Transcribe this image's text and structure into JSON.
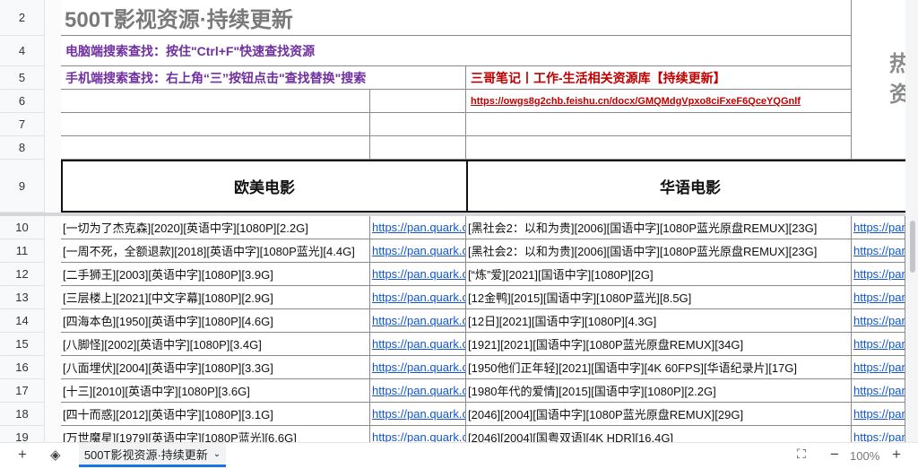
{
  "rows": {
    "header_numbers": [
      "2",
      "4",
      "5",
      "6",
      "7",
      "8",
      "9"
    ],
    "body_numbers": [
      "10",
      "11",
      "12",
      "13",
      "14",
      "15",
      "16",
      "17",
      "18",
      "19"
    ]
  },
  "top": {
    "title": "500T影视资源·持续更新",
    "pc_search": "电脑端搜索查找：按住\"Ctrl+F\"快速查找资源",
    "mobile_search": "手机端搜索查找：右上角“三”按钮点击\"查找替换\"搜索",
    "notes_title": "三哥笔记丨工作-生活相关资源库【持续更新】",
    "notes_link": "https://owgs8g2chb.feishu.cn/docx/GMQMdgVpxo8ciFxeF6QceYQGnlf",
    "side_text": "热\n资"
  },
  "sections": {
    "western": "欧美电影",
    "chinese": "华语电影"
  },
  "link_prefix": "https://pan.quark.c",
  "link_prefix_short": "https://pan.",
  "western_movies": [
    "[一切为了杰克森][2020][英语中字][1080P][2.2G]",
    "[一周不死，全额退款][2018][英语中字][1080P蓝光][4.4G]",
    "[二手狮王][2003][英语中字][1080P][3.9G]",
    "[三层楼上][2021][中文字幕][1080P][2.9G]",
    "[四海本色][1950][英语中字][1080P][4.6G]",
    "[八脚怪][2002][英语中字][1080P][3.4G]",
    "[八面埋伏][2004][英语中字][1080P][3.3G]",
    "[十三][2010][英语中字][1080P][3.6G]",
    "[四十而惑][2012][英语中字][1080P][3.1G]",
    "[万世魔星][1979][英语中字][1080P蓝光][6.6G]"
  ],
  "chinese_movies": [
    "[黑社会2：以和为贵][2006][国语中字][1080P蓝光原盘REMUX][23G]",
    "[黑社会2：以和为贵][2006][国语中字][1080P蓝光原盘REMUX][23G]",
    "[“炼”爱][2021][国语中字][1080P][2G]",
    "[12金鸭][2015][国语中字][1080P蓝光][8.5G]",
    "[12日][2021][国语中字][1080P][4.3G]",
    "[1921][2021][国语中字][1080P蓝光原盘REMUX][34G]",
    "[1950他们正年轻][2021][国语中字][4K 60FPS][华语纪录片][17G]",
    "[1980年代的爱情][2015][国语中字][1080P][2.2G]",
    "[2046][2004][国语中字][1080P蓝光原盘REMUX][29G]",
    "[2046][2004][国粤双语][4K HDR][16.4G]"
  ],
  "bottom": {
    "sheet_tab": "500T影视资源·持续更新",
    "zoom": "100%"
  },
  "colors": {
    "purple": "#7030a0",
    "red": "#c00000",
    "link": "#1155cc",
    "accent": "#1a73e8"
  }
}
